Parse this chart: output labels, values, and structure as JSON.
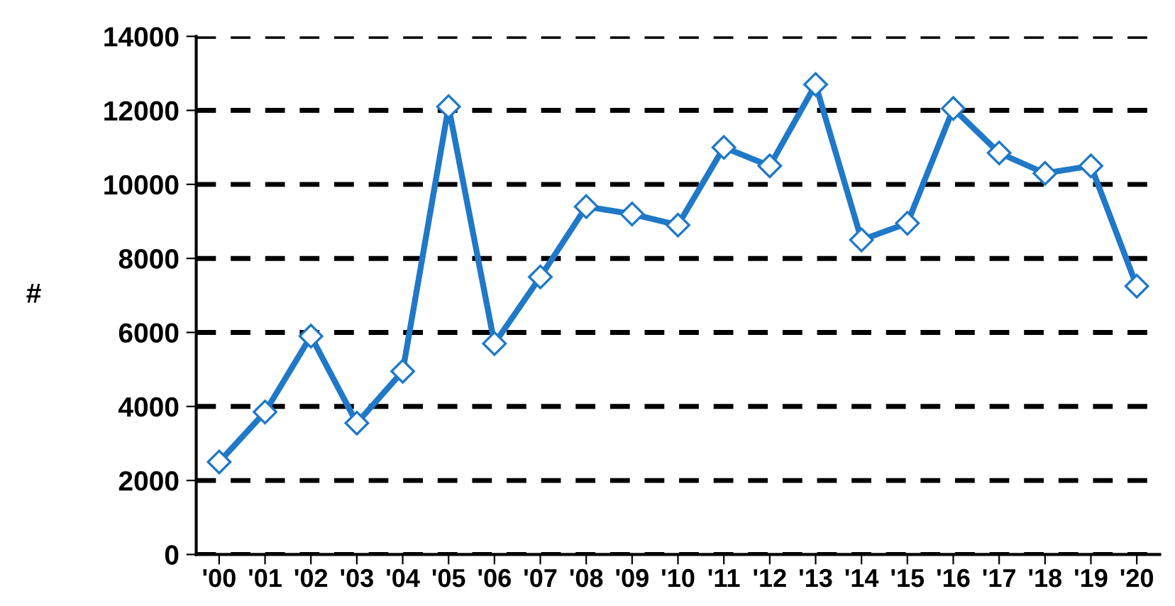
{
  "chart_data": {
    "type": "line",
    "ylabel": "#",
    "categories": [
      "'00",
      "'01",
      "'02",
      "'03",
      "'04",
      "'05",
      "'06",
      "'07",
      "'08",
      "'09",
      "'10",
      "'11",
      "'12",
      "'13",
      "'14",
      "'15",
      "'16",
      "'17",
      "'18",
      "'19",
      "'20"
    ],
    "series": [
      {
        "color": "#1f78c8",
        "values": [
          2500,
          3850,
          5900,
          3550,
          4950,
          12100,
          5700,
          7500,
          9400,
          9200,
          8900,
          11000,
          10500,
          12700,
          8500,
          8950,
          12050,
          10850,
          10300,
          10500,
          7250
        ]
      }
    ],
    "ylim": [
      0,
      14000
    ],
    "yticks": [
      0,
      2000,
      4000,
      6000,
      8000,
      10000,
      12000,
      14000
    ],
    "grid": "y",
    "marker": "diamond",
    "line_style": "solid",
    "legend": false
  }
}
